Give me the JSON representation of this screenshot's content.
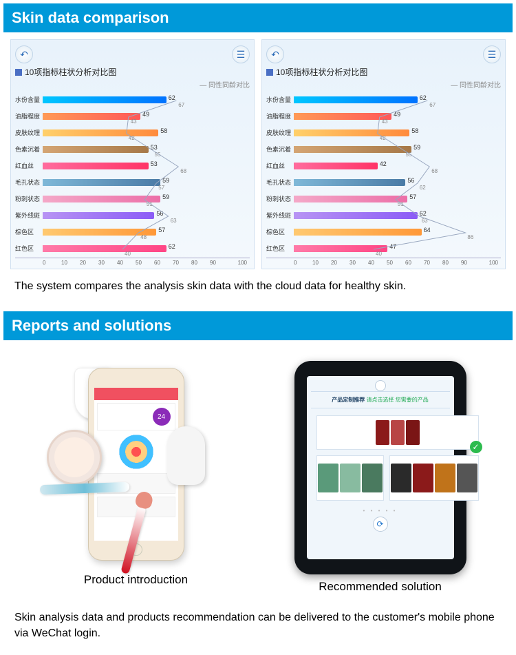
{
  "section1": {
    "title": "Skin data comparison",
    "desc": "The system compares the analysis skin data with the cloud data for healthy skin."
  },
  "section2": {
    "title": "Reports and solutions",
    "desc": "Skin analysis data and products recommendation can be delivered to the customer's mobile phone via WeChat login.",
    "caption_left": "Product introduction",
    "caption_right": "Recommended solution",
    "phone_badge": "24",
    "tablet_title_left": "产品定制推荐",
    "tablet_title_right": "请点击选择  您需要的产品"
  },
  "chart_common": {
    "title": "10项指标柱状分析对比图",
    "legend": "— 同性同龄对比",
    "xticks": [
      0,
      10,
      20,
      30,
      40,
      50,
      60,
      70,
      80,
      90,
      100
    ],
    "xmin": 0,
    "xmax": 100
  },
  "chart_left": {
    "bars": [
      {
        "label": "水份含量",
        "value": 62,
        "ref": 67,
        "fill": "linear-gradient(90deg,#00c6ff,#0072ff)"
      },
      {
        "label": "油脂程度",
        "value": 49,
        "ref": 43,
        "fill": "linear-gradient(90deg,#ff9a56,#ff5858)"
      },
      {
        "label": "皮肤纹理",
        "value": 58,
        "ref": 42,
        "fill": "linear-gradient(90deg,#ffd06a,#ff8a3c)"
      },
      {
        "label": "色素沉着",
        "value": 53,
        "ref": 55,
        "fill": "linear-gradient(90deg,#d4a574,#a67848)"
      },
      {
        "label": "红血丝",
        "value": 53,
        "ref": 68,
        "fill": "linear-gradient(90deg,#ff6b9d,#ff3366)"
      },
      {
        "label": "毛孔状态",
        "value": 59,
        "ref": 57,
        "fill": "linear-gradient(90deg,#7fb8d8,#4a7ba6)"
      },
      {
        "label": "粉刺状态",
        "value": 59,
        "ref": 51,
        "fill": "linear-gradient(90deg,#f4a8c8,#ec6fa8)"
      },
      {
        "label": "紫外线斑",
        "value": 56,
        "ref": 63,
        "fill": "linear-gradient(90deg,#b794f4,#8b5cf6)"
      },
      {
        "label": "棕色区",
        "value": 57,
        "ref": 48,
        "fill": "linear-gradient(90deg,#ffc970,#ff9838)"
      },
      {
        "label": "红色区",
        "value": 62,
        "ref": 40,
        "fill": "linear-gradient(90deg,#ff7aa8,#ff4585)"
      }
    ]
  },
  "chart_right": {
    "bars": [
      {
        "label": "水份含量",
        "value": 62,
        "ref": 67,
        "fill": "linear-gradient(90deg,#00c6ff,#0072ff)"
      },
      {
        "label": "油脂程度",
        "value": 49,
        "ref": 43,
        "fill": "linear-gradient(90deg,#ff9a56,#ff5858)"
      },
      {
        "label": "皮肤纹理",
        "value": 58,
        "ref": 42,
        "fill": "linear-gradient(90deg,#ffd06a,#ff8a3c)"
      },
      {
        "label": "色素沉着",
        "value": 59,
        "ref": 55,
        "fill": "linear-gradient(90deg,#d4a574,#a67848)"
      },
      {
        "label": "红血丝",
        "value": 42,
        "ref": 68,
        "fill": "linear-gradient(90deg,#ff6b9d,#ff3366)"
      },
      {
        "label": "毛孔状态",
        "value": 56,
        "ref": 62,
        "fill": "linear-gradient(90deg,#7fb8d8,#4a7ba6)"
      },
      {
        "label": "粉刺状态",
        "value": 57,
        "ref": 51,
        "fill": "linear-gradient(90deg,#f4a8c8,#ec6fa8)"
      },
      {
        "label": "紫外线斑",
        "value": 62,
        "ref": 63,
        "fill": "linear-gradient(90deg,#b794f4,#8b5cf6)"
      },
      {
        "label": "棕色区",
        "value": 64,
        "ref": 86,
        "fill": "linear-gradient(90deg,#ffc970,#ff9838)"
      },
      {
        "label": "红色区",
        "value": 47,
        "ref": 40,
        "fill": "linear-gradient(90deg,#ff7aa8,#ff4585)"
      }
    ]
  },
  "tablet_products": {
    "tile1_colors": [
      "#8b1a1a",
      "#b84545",
      "#7a1515"
    ],
    "tile2_colors": [
      "#5a9a7a",
      "#88bba0",
      "#4a7a5f"
    ],
    "tile3_colors": [
      "#2a2a2a",
      "#8b1a1a",
      "#c0731a",
      "#555"
    ]
  }
}
